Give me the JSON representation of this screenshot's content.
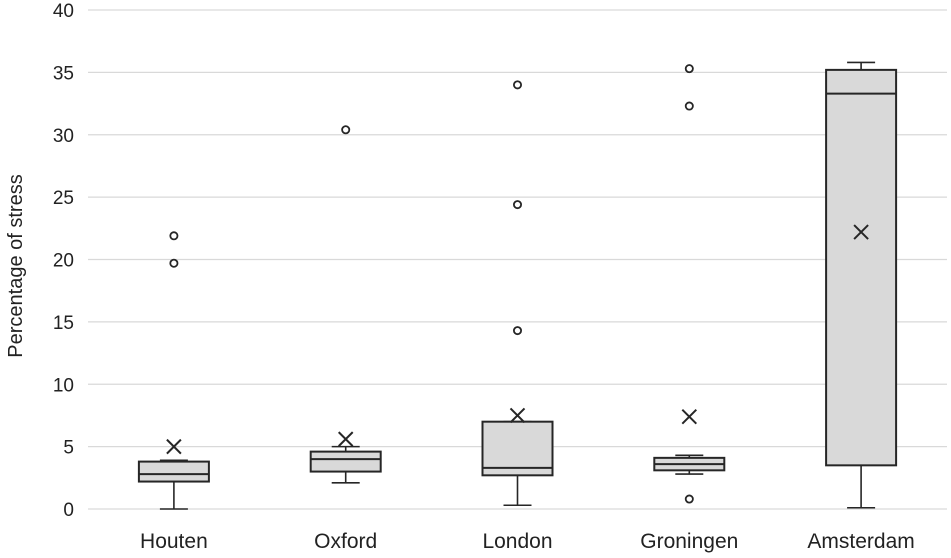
{
  "chart_data": {
    "type": "boxplot",
    "title": "",
    "xlabel": "",
    "ylabel": "Percentage of stress",
    "ylim": [
      0,
      40
    ],
    "yticks": [
      0,
      5,
      10,
      15,
      20,
      25,
      30,
      35,
      40
    ],
    "grid": true,
    "legend": "none",
    "categories": [
      "Houten",
      "Oxford",
      "London",
      "Groningen",
      "Amsterdam"
    ],
    "boxes": [
      {
        "category": "Houten",
        "whisker_low": 0.0,
        "q1": 2.2,
        "median": 2.8,
        "q3": 3.8,
        "whisker_high": 3.9,
        "mean": 5.0,
        "outliers": [
          19.7,
          21.9
        ]
      },
      {
        "category": "Oxford",
        "whisker_low": 2.1,
        "q1": 3.0,
        "median": 4.0,
        "q3": 4.6,
        "whisker_high": 5.0,
        "mean": 5.6,
        "outliers": [
          30.4
        ]
      },
      {
        "category": "London",
        "whisker_low": 0.3,
        "q1": 2.7,
        "median": 3.3,
        "q3": 7.0,
        "whisker_high": 7.0,
        "mean": 7.5,
        "outliers": [
          14.3,
          24.4,
          34.0
        ]
      },
      {
        "category": "Groningen",
        "whisker_low": 2.8,
        "q1": 3.1,
        "median": 3.6,
        "q3": 4.1,
        "whisker_high": 4.3,
        "mean": 7.4,
        "outliers": [
          0.8,
          32.3,
          35.3
        ]
      },
      {
        "category": "Amsterdam",
        "whisker_low": 0.1,
        "q1": 3.5,
        "median": 33.3,
        "q3": 35.2,
        "whisker_high": 35.8,
        "mean": 22.2,
        "outliers": []
      }
    ],
    "colors": {
      "box_fill": "#d9d9d9",
      "stroke": "#262626",
      "grid": "#d9d9d9"
    }
  }
}
